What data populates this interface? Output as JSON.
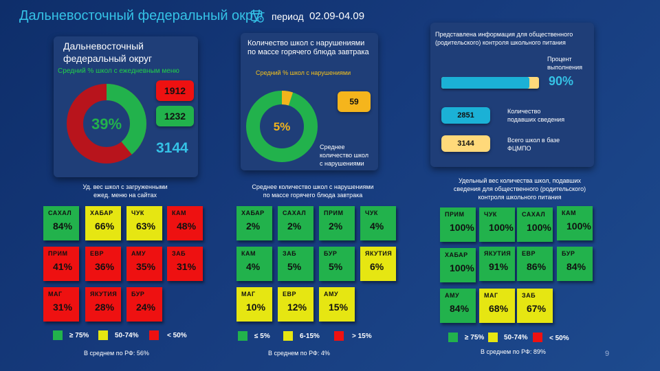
{
  "header": {
    "title": "Дальневосточный федеральный округ",
    "period_label": "период",
    "period_value": "02.09-04.09"
  },
  "panel1": {
    "title_line1": "Дальневосточный",
    "title_line2": "федеральный округ",
    "subtitle": "Средний % школ с ежедневным меню",
    "donut_percent": 39,
    "donut_label": "39%",
    "red_value": "1912",
    "green_value": "1232",
    "total_value": "3144",
    "caption_line1": "Уд. вес школ с загруженными",
    "caption_line2": "ежед. меню на сайтах",
    "tiles": [
      {
        "name": "САХАЛ",
        "value": "84%",
        "color": "g"
      },
      {
        "name": "ХАБАР",
        "value": "66%",
        "color": "y"
      },
      {
        "name": "ЧУК",
        "value": "63%",
        "color": "y"
      },
      {
        "name": "КАМ",
        "value": "48%",
        "color": "r"
      },
      {
        "name": "ПРИМ",
        "value": "41%",
        "color": "r"
      },
      {
        "name": "ЕВР",
        "value": "36%",
        "color": "r"
      },
      {
        "name": "АМУ",
        "value": "35%",
        "color": "r"
      },
      {
        "name": "ЗАБ",
        "value": "31%",
        "color": "r"
      },
      {
        "name": "МАГ",
        "value": "31%",
        "color": "r"
      },
      {
        "name": "ЯКУТИЯ",
        "value": "28%",
        "color": "r"
      },
      {
        "name": "БУР",
        "value": "24%",
        "color": "r"
      }
    ],
    "legend": [
      "≥ 75%",
      "50-74%",
      "< 50%"
    ],
    "average": "В среднем по РФ: 56%"
  },
  "panel2": {
    "title_line1": "Количество школ с нарушениями",
    "title_line2": "по массе горячего блюда завтрака",
    "subtitle": "Средний % школ с нарушениями",
    "donut_percent": 5,
    "donut_label": "5%",
    "value_box": "59",
    "side_line1": "Среднее",
    "side_line2": "количество школ",
    "side_line3": "с нарушениями",
    "caption_line1": "Среднее количество школ с нарушениями",
    "caption_line2": "по массе горячего блюда завтрака",
    "tiles": [
      {
        "name": "ХАБАР",
        "value": "2%",
        "color": "g"
      },
      {
        "name": "САХАЛ",
        "value": "2%",
        "color": "g"
      },
      {
        "name": "ПРИМ",
        "value": "2%",
        "color": "g"
      },
      {
        "name": "ЧУК",
        "value": "4%",
        "color": "g"
      },
      {
        "name": "КАМ",
        "value": "4%",
        "color": "g"
      },
      {
        "name": "ЗАБ",
        "value": "5%",
        "color": "g"
      },
      {
        "name": "БУР",
        "value": "5%",
        "color": "g"
      },
      {
        "name": "ЯКУТИЯ",
        "value": "6%",
        "color": "y"
      },
      {
        "name": "МАГ",
        "value": "10%",
        "color": "y"
      },
      {
        "name": "ЕВР",
        "value": "12%",
        "color": "y"
      },
      {
        "name": "АМУ",
        "value": "15%",
        "color": "y"
      }
    ],
    "legend": [
      "≤ 5%",
      "6-15%",
      "> 15%"
    ],
    "average": "В среднем по РФ: 4%"
  },
  "panel3": {
    "title_line1": "Представлена информация для общественного",
    "title_line2": "(родительского) контроля школьного питания",
    "percent_label_line1": "Процент",
    "percent_label_line2": "выполнения",
    "percent_value": "90%",
    "progress": 0.9,
    "count_box": "2851",
    "count_label_line1": "Количество",
    "count_label_line2": "подавших сведения",
    "total_box": "3144",
    "total_label_line1": "Всего школ в базе",
    "total_label_line2": "ФЦМПО",
    "caption_line1": "Удельный вес количества школ, подавших",
    "caption_line2": "сведения для общественного (родительского)",
    "caption_line3": "контроля школьного питания",
    "tiles": [
      {
        "name": "ПРИМ",
        "value": "100%",
        "color": "g"
      },
      {
        "name": "ЧУК",
        "value": "100%",
        "color": "g"
      },
      {
        "name": "САХАЛ",
        "value": "100%",
        "color": "g"
      },
      {
        "name": "КАМ",
        "value": "100%",
        "color": "g"
      },
      {
        "name": "ХАБАР",
        "value": "100%",
        "color": "g"
      },
      {
        "name": "ЯКУТИЯ",
        "value": "91%",
        "color": "g"
      },
      {
        "name": "ЕВР",
        "value": "86%",
        "color": "g"
      },
      {
        "name": "БУР",
        "value": "84%",
        "color": "g"
      },
      {
        "name": "АМУ",
        "value": "84%",
        "color": "g"
      },
      {
        "name": "МАГ",
        "value": "68%",
        "color": "y"
      },
      {
        "name": "ЗАБ",
        "value": "67%",
        "color": "y"
      }
    ],
    "legend": [
      "≥ 75%",
      "50-74%",
      "< 50%"
    ],
    "average": "В среднем по РФ: 89%"
  },
  "page_number": "9",
  "colors": {
    "green": "#22b24c",
    "yellow": "#e6e612",
    "red": "#ee1111",
    "accent": "#35c2e6",
    "donut_red": "#b8141c",
    "donut_orange": "#f2b41c",
    "box_orange": "#f5b51c",
    "box_cream": "#ffd97a"
  }
}
